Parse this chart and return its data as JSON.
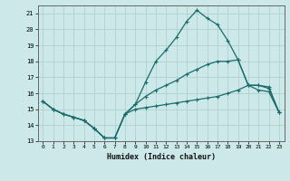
{
  "xlabel": "Humidex (Indice chaleur)",
  "xlim": [
    -0.5,
    23.5
  ],
  "ylim": [
    13,
    21.5
  ],
  "yticks": [
    13,
    14,
    15,
    16,
    17,
    18,
    19,
    20,
    21
  ],
  "xticks": [
    0,
    1,
    2,
    3,
    4,
    5,
    6,
    7,
    8,
    9,
    10,
    11,
    12,
    13,
    14,
    15,
    16,
    17,
    18,
    19,
    20,
    21,
    22,
    23
  ],
  "bg_color": "#cce8e8",
  "grid_color": "#b0d0d0",
  "line_color": "#1a6b6b",
  "line1_x": [
    0,
    1,
    2,
    3,
    4,
    5,
    6,
    7,
    8,
    9,
    10,
    11,
    12,
    13,
    14,
    15,
    16,
    17,
    18,
    19,
    20,
    21,
    22,
    23
  ],
  "line1_y": [
    15.5,
    15.0,
    14.7,
    14.5,
    14.3,
    13.8,
    13.2,
    13.2,
    14.7,
    15.3,
    16.7,
    18.0,
    18.7,
    19.5,
    20.5,
    21.2,
    20.7,
    20.3,
    19.3,
    18.1,
    16.5,
    16.2,
    16.1,
    14.8
  ],
  "line2_x": [
    0,
    1,
    2,
    3,
    4,
    5,
    6,
    7,
    8,
    9,
    10,
    11,
    12,
    13,
    14,
    15,
    16,
    17,
    18,
    19,
    20,
    21,
    22,
    23
  ],
  "line2_y": [
    15.5,
    15.0,
    14.7,
    14.5,
    14.3,
    13.8,
    13.2,
    13.2,
    14.7,
    15.3,
    15.8,
    16.2,
    16.5,
    16.8,
    17.2,
    17.5,
    17.8,
    18.0,
    18.0,
    18.1,
    16.5,
    16.5,
    16.4,
    14.8
  ],
  "line3_x": [
    0,
    1,
    2,
    3,
    4,
    5,
    6,
    7,
    8,
    9,
    10,
    11,
    12,
    13,
    14,
    15,
    16,
    17,
    18,
    19,
    20,
    21,
    22,
    23
  ],
  "line3_y": [
    15.5,
    15.0,
    14.7,
    14.5,
    14.3,
    13.8,
    13.2,
    13.2,
    14.7,
    15.0,
    15.1,
    15.2,
    15.3,
    15.4,
    15.5,
    15.6,
    15.7,
    15.8,
    16.0,
    16.2,
    16.5,
    16.5,
    16.3,
    14.8
  ]
}
